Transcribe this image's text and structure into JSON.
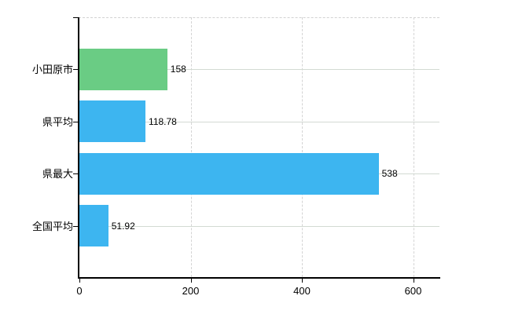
{
  "chart_data": {
    "type": "bar",
    "orientation": "horizontal",
    "title": "",
    "xlabel": "",
    "ylabel": "",
    "categories": [
      "小田原市",
      "県平均",
      "県最大",
      "全国平均"
    ],
    "values": [
      158,
      118.78,
      538,
      51.92
    ],
    "value_labels": [
      "158",
      "118.78",
      "538",
      "51.92"
    ],
    "bar_colors": [
      "#6ACC84",
      "#3DB5F0",
      "#3DB5F0",
      "#3DB5F0"
    ],
    "x_ticks": [
      0,
      200,
      400,
      600
    ],
    "x_tick_labels": [
      "0",
      "200",
      "400",
      "600"
    ],
    "xlim": [
      0,
      645
    ],
    "grid": true,
    "legend": false,
    "style": {
      "axis_color": "#000000",
      "hgrid_color": "#d3dad3",
      "vgrid_color": "#d4d4d4",
      "plot_border_color": "#d2d2d2",
      "background_color": "#ffffff",
      "text_color": "#000000"
    }
  }
}
